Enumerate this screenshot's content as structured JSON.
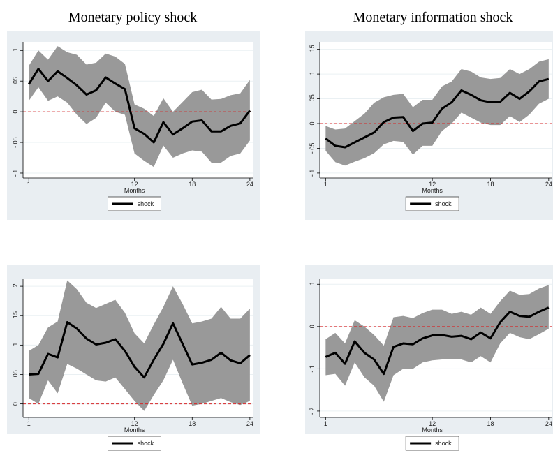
{
  "chart_data": [
    {
      "type": "line",
      "title": "Monetary policy shock",
      "xlabel": "Months",
      "x": [
        1,
        2,
        3,
        4,
        5,
        6,
        7,
        8,
        9,
        10,
        11,
        12,
        13,
        14,
        15,
        16,
        17,
        18,
        19,
        20,
        21,
        22,
        23,
        24
      ],
      "xlim": [
        0.4,
        24.3
      ],
      "xticks": [
        1,
        12,
        18,
        24
      ],
      "ylim": [
        -0.108,
        0.114
      ],
      "yticks": [
        {
          "value": -0.1,
          "label": "-.1"
        },
        {
          "value": -0.05,
          "label": "-.05"
        },
        0,
        {
          "value": 0.05,
          "label": ".05"
        },
        {
          "value": 0.1,
          "label": ".1"
        }
      ],
      "grid": true,
      "hline": 0,
      "hline_color": "#d62728",
      "series": [
        {
          "name": "shock",
          "color": "#000000",
          "values": [
            0.045,
            0.07,
            0.05,
            0.066,
            0.055,
            0.043,
            0.028,
            0.035,
            0.056,
            0.046,
            0.037,
            -0.027,
            -0.036,
            -0.05,
            -0.017,
            -0.037,
            -0.027,
            -0.016,
            -0.014,
            -0.032,
            -0.032,
            -0.023,
            -0.019,
            0.002
          ]
        }
      ],
      "band": {
        "color": "#999999",
        "upper": [
          0.075,
          0.1,
          0.085,
          0.107,
          0.097,
          0.093,
          0.077,
          0.08,
          0.095,
          0.09,
          0.078,
          0.012,
          0.005,
          -0.007,
          0.022,
          0.0,
          0.016,
          0.032,
          0.036,
          0.02,
          0.021,
          0.027,
          0.03,
          0.052
        ],
        "lower": [
          0.018,
          0.04,
          0.018,
          0.025,
          0.015,
          -0.005,
          -0.02,
          -0.01,
          0.015,
          0.0,
          -0.005,
          -0.068,
          -0.08,
          -0.09,
          -0.055,
          -0.075,
          -0.068,
          -0.063,
          -0.065,
          -0.083,
          -0.083,
          -0.072,
          -0.068,
          -0.047
        ]
      }
    },
    {
      "type": "line",
      "title": "Monetary information shock",
      "xlabel": "Months",
      "x": [
        1,
        2,
        3,
        4,
        5,
        6,
        7,
        8,
        9,
        10,
        11,
        12,
        13,
        14,
        15,
        16,
        17,
        18,
        19,
        20,
        21,
        22,
        23,
        24
      ],
      "xlim": [
        0.4,
        24.3
      ],
      "xticks": [
        1,
        12,
        18,
        24
      ],
      "ylim": [
        -0.11,
        0.165
      ],
      "yticks": [
        {
          "value": -0.1,
          "label": "-.1"
        },
        {
          "value": -0.05,
          "label": "-.05"
        },
        0,
        {
          "value": 0.05,
          "label": ".05"
        },
        {
          "value": 0.1,
          "label": ".1"
        },
        {
          "value": 0.15,
          "label": ".15"
        }
      ],
      "grid": true,
      "hline": 0,
      "hline_color": "#d62728",
      "series": [
        {
          "name": "shock",
          "color": "#000000",
          "values": [
            -0.03,
            -0.045,
            -0.048,
            -0.038,
            -0.028,
            -0.018,
            0.003,
            0.012,
            0.013,
            -0.015,
            0.0,
            0.002,
            0.03,
            0.043,
            0.067,
            0.058,
            0.047,
            0.043,
            0.044,
            0.062,
            0.05,
            0.065,
            0.085,
            0.09
          ]
        }
      ],
      "band": {
        "color": "#999999",
        "upper": [
          -0.005,
          -0.012,
          -0.01,
          0.005,
          0.02,
          0.042,
          0.053,
          0.058,
          0.06,
          0.033,
          0.048,
          0.048,
          0.075,
          0.085,
          0.11,
          0.105,
          0.093,
          0.09,
          0.092,
          0.11,
          0.1,
          0.11,
          0.125,
          0.13
        ],
        "lower": [
          -0.055,
          -0.078,
          -0.085,
          -0.077,
          -0.07,
          -0.06,
          -0.042,
          -0.035,
          -0.037,
          -0.063,
          -0.045,
          -0.045,
          -0.015,
          0.0,
          0.022,
          0.012,
          0.002,
          -0.003,
          -0.003,
          0.015,
          0.003,
          0.018,
          0.04,
          0.05
        ]
      }
    },
    {
      "type": "line",
      "xlabel": "Months",
      "x": [
        1,
        2,
        3,
        4,
        5,
        6,
        7,
        8,
        9,
        10,
        11,
        12,
        13,
        14,
        15,
        16,
        17,
        18,
        19,
        20,
        21,
        22,
        23,
        24
      ],
      "xlim": [
        0.4,
        24.3
      ],
      "xticks": [
        1,
        12,
        18,
        24
      ],
      "ylim": [
        -0.023,
        0.212
      ],
      "yticks": [
        0,
        {
          "value": 0.05,
          "label": ".05"
        },
        {
          "value": 0.1,
          "label": ".1"
        },
        {
          "value": 0.15,
          "label": ".15"
        },
        {
          "value": 0.2,
          "label": ".2"
        }
      ],
      "grid": true,
      "hline": 0,
      "hline_color": "#d62728",
      "series": [
        {
          "name": "shock",
          "color": "#000000",
          "values": [
            0.05,
            0.051,
            0.085,
            0.079,
            0.139,
            0.128,
            0.111,
            0.101,
            0.104,
            0.11,
            0.09,
            0.063,
            0.045,
            0.075,
            0.102,
            0.137,
            0.102,
            0.067,
            0.07,
            0.075,
            0.087,
            0.074,
            0.069,
            0.083
          ]
        }
      ],
      "band": {
        "color": "#999999",
        "upper": [
          0.09,
          0.1,
          0.13,
          0.14,
          0.21,
          0.195,
          0.172,
          0.163,
          0.17,
          0.177,
          0.155,
          0.12,
          0.103,
          0.135,
          0.165,
          0.2,
          0.17,
          0.137,
          0.14,
          0.145,
          0.165,
          0.145,
          0.145,
          0.162
        ],
        "lower": [
          0.01,
          0.0,
          0.04,
          0.018,
          0.068,
          0.06,
          0.05,
          0.04,
          0.038,
          0.045,
          0.025,
          0.005,
          -0.012,
          0.015,
          0.04,
          0.075,
          0.035,
          -0.003,
          0.0,
          0.005,
          0.01,
          0.003,
          -0.002,
          0.005
        ]
      }
    },
    {
      "type": "line",
      "xlabel": "Months",
      "x": [
        1,
        2,
        3,
        4,
        5,
        6,
        7,
        8,
        9,
        10,
        11,
        12,
        13,
        14,
        15,
        16,
        17,
        18,
        19,
        20,
        21,
        22,
        23,
        24
      ],
      "xlim": [
        0.4,
        24.3
      ],
      "xticks": [
        1,
        12,
        18,
        24
      ],
      "ylim": [
        -0.215,
        0.112
      ],
      "yticks": [
        {
          "value": -0.2,
          "label": "-.2"
        },
        {
          "value": -0.1,
          "label": "-.1"
        },
        0,
        {
          "value": 0.1,
          "label": ".1"
        }
      ],
      "grid": true,
      "hline": 0,
      "hline_color": "#d62728",
      "series": [
        {
          "name": "shock",
          "color": "#000000",
          "values": [
            -0.072,
            -0.062,
            -0.088,
            -0.035,
            -0.062,
            -0.078,
            -0.112,
            -0.048,
            -0.04,
            -0.042,
            -0.028,
            -0.021,
            -0.02,
            -0.024,
            -0.022,
            -0.03,
            -0.014,
            -0.028,
            0.01,
            0.035,
            0.025,
            0.023,
            0.035,
            0.045
          ]
        }
      ],
      "band": {
        "color": "#999999",
        "upper": [
          -0.03,
          -0.015,
          -0.04,
          0.015,
          0.0,
          -0.02,
          -0.045,
          0.022,
          0.025,
          0.02,
          0.032,
          0.04,
          0.04,
          0.03,
          0.035,
          0.028,
          0.045,
          0.03,
          0.06,
          0.085,
          0.075,
          0.077,
          0.09,
          0.098
        ],
        "lower": [
          -0.115,
          -0.112,
          -0.14,
          -0.085,
          -0.12,
          -0.14,
          -0.178,
          -0.115,
          -0.1,
          -0.1,
          -0.085,
          -0.08,
          -0.078,
          -0.078,
          -0.078,
          -0.085,
          -0.07,
          -0.085,
          -0.04,
          -0.015,
          -0.025,
          -0.03,
          -0.018,
          -0.005
        ]
      }
    }
  ]
}
